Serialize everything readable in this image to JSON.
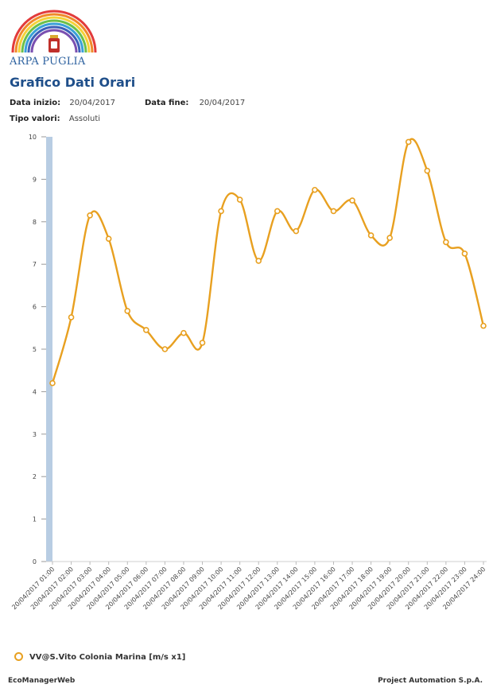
{
  "header": {
    "brand": "ARPA PUGLIA",
    "title": "Grafico Dati Orari",
    "start_label": "Data inizio:",
    "start_value": "20/04/2017",
    "end_label": "Data fine:",
    "end_value": "20/04/2017",
    "type_label": "Tipo valori:",
    "type_value": "Assoluti"
  },
  "colors": {
    "series": "#e8a020",
    "axis_band": "#b8cde3",
    "brand": "#2a5f9e"
  },
  "footer": {
    "left": "EcoManagerWeb",
    "right": "Project Automation S.p.A."
  },
  "chart_data": {
    "type": "line",
    "ylim": [
      0,
      10
    ],
    "yticks": [
      0,
      1,
      2,
      3,
      4,
      5,
      6,
      7,
      8,
      9,
      10
    ],
    "categories": [
      "20/04/2017 01:00",
      "20/04/2017 02:00",
      "20/04/2017 03:00",
      "20/04/2017 04:00",
      "20/04/2017 05:00",
      "20/04/2017 06:00",
      "20/04/2017 07:00",
      "20/04/2017 08:00",
      "20/04/2017 09:00",
      "20/04/2017 10:00",
      "20/04/2017 11:00",
      "20/04/2017 12:00",
      "20/04/2017 13:00",
      "20/04/2017 14:00",
      "20/04/2017 15:00",
      "20/04/2017 16:00",
      "20/04/2017 17:00",
      "20/04/2017 18:00",
      "20/04/2017 19:00",
      "20/04/2017 20:00",
      "20/04/2017 21:00",
      "20/04/2017 22:00",
      "20/04/2017 23:00",
      "20/04/2017 24:00"
    ],
    "series": [
      {
        "name": "VV@S.Vito Colonia Marina [m/s x1]",
        "values": [
          4.2,
          5.75,
          8.15,
          7.6,
          5.9,
          5.45,
          5.0,
          5.38,
          5.15,
          8.25,
          8.52,
          7.08,
          8.25,
          7.78,
          8.75,
          8.25,
          8.5,
          7.68,
          7.62,
          9.88,
          9.2,
          7.52,
          7.25,
          5.55
        ]
      }
    ]
  }
}
